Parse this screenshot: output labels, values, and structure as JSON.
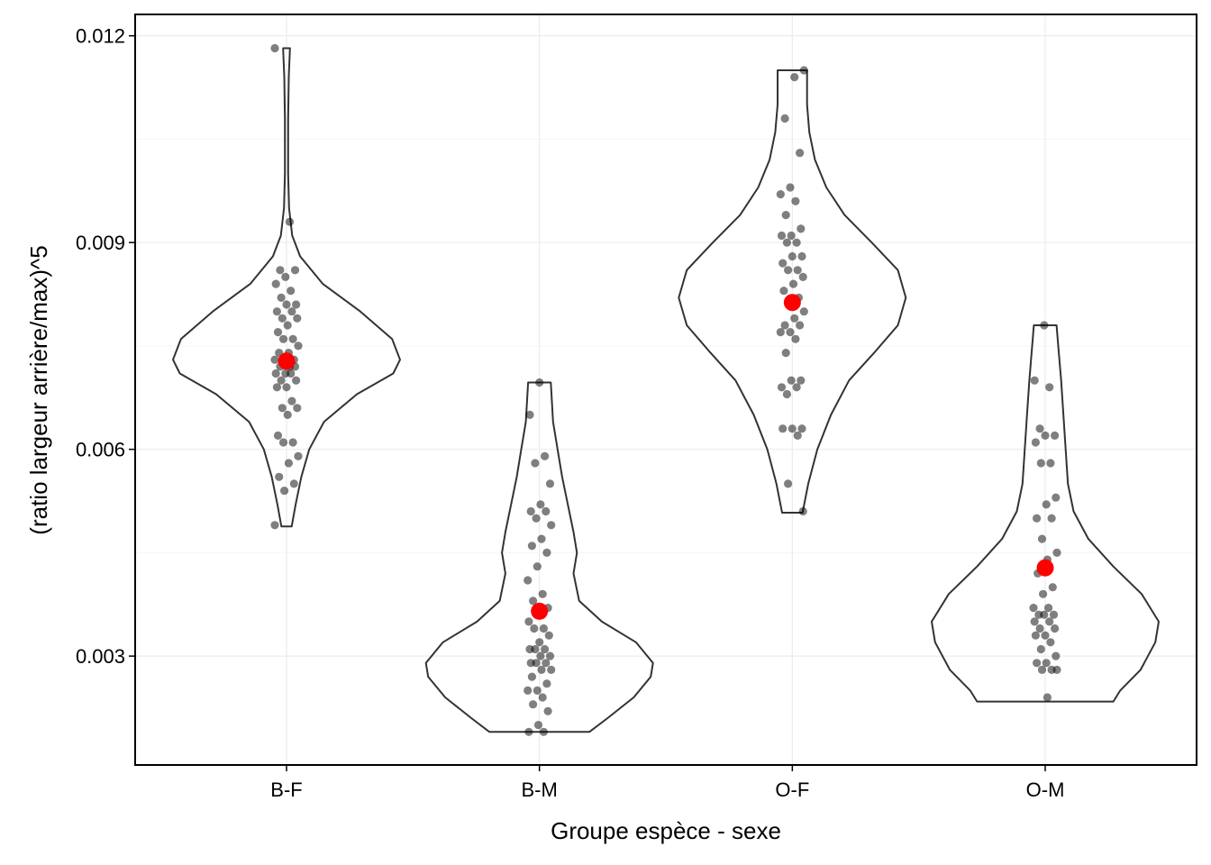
{
  "chart_data": {
    "type": "violin",
    "xlabel": "Groupe espèce - sexe",
    "ylabel": "(ratio largeur arrière/max)^5",
    "categories": [
      "B-F",
      "B-M",
      "O-F",
      "O-M"
    ],
    "ylim": [
      0.00142,
      0.01231
    ],
    "yticks": [
      0.003,
      0.006,
      0.009,
      0.012
    ],
    "ytick_labels": [
      "0.003",
      "0.006",
      "0.009",
      "0.012"
    ],
    "grid": true,
    "colors": {
      "violin_outline": "#333333",
      "point": "#000000",
      "mean": "#ff0000",
      "grid_major": "#ebebeb",
      "grid_minor": "#f5f5f5"
    },
    "violins": [
      {
        "category": "B-F",
        "profile": [
          [
            0.00488,
            0.045
          ],
          [
            0.0052,
            0.08
          ],
          [
            0.0056,
            0.13
          ],
          [
            0.006,
            0.2
          ],
          [
            0.0064,
            0.33
          ],
          [
            0.0068,
            0.62
          ],
          [
            0.0071,
            0.94
          ],
          [
            0.0073,
            1.0
          ],
          [
            0.0076,
            0.93
          ],
          [
            0.008,
            0.65
          ],
          [
            0.0084,
            0.32
          ],
          [
            0.0088,
            0.12
          ],
          [
            0.0091,
            0.05
          ],
          [
            0.0095,
            0.022
          ],
          [
            0.01,
            0.014
          ],
          [
            0.0108,
            0.014
          ],
          [
            0.0114,
            0.02
          ],
          [
            0.01182,
            0.03
          ]
        ],
        "points": [
          0.01182,
          0.0093,
          0.0086,
          0.0086,
          0.0085,
          0.0084,
          0.0083,
          0.0082,
          0.0081,
          0.0081,
          0.008,
          0.008,
          0.0079,
          0.0079,
          0.0078,
          0.0077,
          0.0076,
          0.0076,
          0.0075,
          0.0074,
          0.0074,
          0.0073,
          0.0073,
          0.0073,
          0.0072,
          0.0072,
          0.0072,
          0.0071,
          0.0071,
          0.0071,
          0.007,
          0.007,
          0.0069,
          0.0069,
          0.0067,
          0.0066,
          0.0066,
          0.0065,
          0.0062,
          0.0061,
          0.0061,
          0.0059,
          0.0058,
          0.0056,
          0.0055,
          0.0054,
          0.0049
        ],
        "mean": 0.00728
      },
      {
        "category": "B-M",
        "profile": [
          [
            0.0019,
            0.44
          ],
          [
            0.0021,
            0.6
          ],
          [
            0.0024,
            0.83
          ],
          [
            0.0027,
            0.98
          ],
          [
            0.0029,
            1.0
          ],
          [
            0.0032,
            0.85
          ],
          [
            0.0035,
            0.55
          ],
          [
            0.0038,
            0.35
          ],
          [
            0.0042,
            0.3
          ],
          [
            0.0045,
            0.33
          ],
          [
            0.0048,
            0.3
          ],
          [
            0.0052,
            0.25
          ],
          [
            0.0056,
            0.2
          ],
          [
            0.006,
            0.16
          ],
          [
            0.0064,
            0.12
          ],
          [
            0.00697,
            0.1
          ]
        ],
        "points": [
          0.00697,
          0.0065,
          0.0059,
          0.0058,
          0.0055,
          0.0052,
          0.0051,
          0.0051,
          0.005,
          0.0049,
          0.0047,
          0.0046,
          0.0045,
          0.0043,
          0.0041,
          0.0039,
          0.0038,
          0.0037,
          0.0036,
          0.0035,
          0.0034,
          0.0034,
          0.0033,
          0.0032,
          0.0031,
          0.0031,
          0.0031,
          0.003,
          0.003,
          0.0029,
          0.0029,
          0.0029,
          0.0028,
          0.0028,
          0.0027,
          0.0026,
          0.0025,
          0.0025,
          0.0024,
          0.0023,
          0.0022,
          0.002,
          0.0019,
          0.0019
        ],
        "mean": 0.00365
      },
      {
        "category": "O-F",
        "profile": [
          [
            0.00508,
            0.09
          ],
          [
            0.0055,
            0.14
          ],
          [
            0.006,
            0.22
          ],
          [
            0.0065,
            0.34
          ],
          [
            0.007,
            0.5
          ],
          [
            0.0074,
            0.72
          ],
          [
            0.0078,
            0.93
          ],
          [
            0.0082,
            1.0
          ],
          [
            0.0086,
            0.93
          ],
          [
            0.009,
            0.7
          ],
          [
            0.0094,
            0.46
          ],
          [
            0.0098,
            0.3
          ],
          [
            0.0102,
            0.2
          ],
          [
            0.0106,
            0.15
          ],
          [
            0.011,
            0.13
          ],
          [
            0.0115,
            0.13
          ]
        ],
        "points": [
          0.0115,
          0.0114,
          0.0108,
          0.0103,
          0.0098,
          0.0097,
          0.0096,
          0.0094,
          0.0092,
          0.0091,
          0.0091,
          0.009,
          0.009,
          0.0088,
          0.0088,
          0.0087,
          0.0086,
          0.0086,
          0.0085,
          0.0084,
          0.0083,
          0.0082,
          0.0081,
          0.008,
          0.0079,
          0.0078,
          0.0078,
          0.0077,
          0.0077,
          0.0076,
          0.0074,
          0.007,
          0.007,
          0.0069,
          0.0069,
          0.0068,
          0.0063,
          0.0063,
          0.0063,
          0.0062,
          0.0055,
          0.0051
        ],
        "mean": 0.00813
      },
      {
        "category": "O-M",
        "profile": [
          [
            0.00234,
            0.6
          ],
          [
            0.0025,
            0.66
          ],
          [
            0.0028,
            0.84
          ],
          [
            0.0032,
            0.97
          ],
          [
            0.0035,
            1.0
          ],
          [
            0.0039,
            0.85
          ],
          [
            0.0043,
            0.6
          ],
          [
            0.0047,
            0.38
          ],
          [
            0.0051,
            0.25
          ],
          [
            0.0055,
            0.2
          ],
          [
            0.006,
            0.18
          ],
          [
            0.0065,
            0.16
          ],
          [
            0.007,
            0.14
          ],
          [
            0.0074,
            0.12
          ],
          [
            0.0078,
            0.1
          ]
        ],
        "points": [
          0.0078,
          0.007,
          0.0069,
          0.0063,
          0.0062,
          0.0062,
          0.0061,
          0.0058,
          0.0058,
          0.0053,
          0.0052,
          0.005,
          0.005,
          0.0047,
          0.0045,
          0.0044,
          0.0042,
          0.004,
          0.0039,
          0.0037,
          0.0037,
          0.0036,
          0.0036,
          0.0036,
          0.0035,
          0.0035,
          0.0034,
          0.0034,
          0.0033,
          0.0033,
          0.0032,
          0.0031,
          0.003,
          0.0029,
          0.0029,
          0.0028,
          0.0028,
          0.0028,
          0.0024
        ],
        "mean": 0.00428
      }
    ]
  }
}
